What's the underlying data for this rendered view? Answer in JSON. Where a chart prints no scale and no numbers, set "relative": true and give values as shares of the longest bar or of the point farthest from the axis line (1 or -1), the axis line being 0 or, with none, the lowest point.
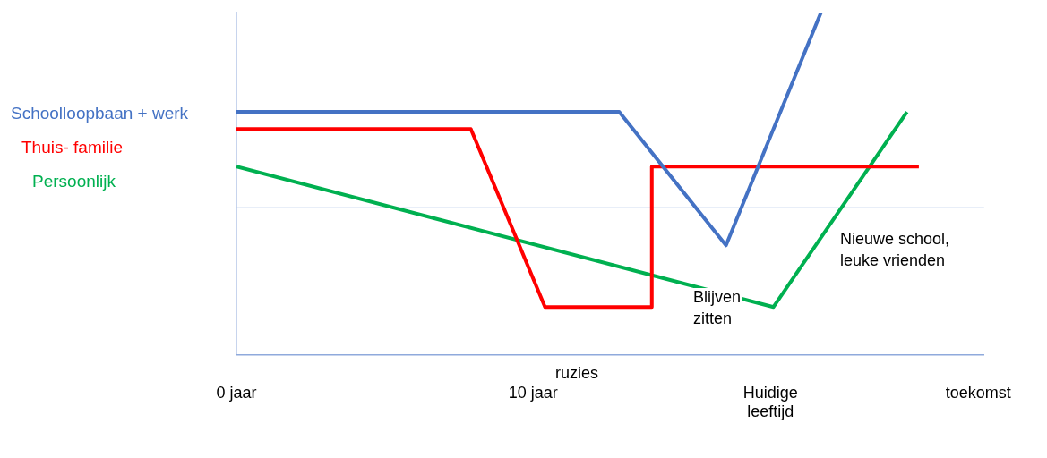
{
  "chart_data": {
    "type": "line",
    "relative": true,
    "legend": "left",
    "grid": false,
    "marker": "none",
    "line_style": "solid",
    "tick_labels": "x",
    "xlim": [
      0,
      25.2
    ],
    "xticks": [
      {
        "value": 0,
        "label": "0 jaar"
      },
      {
        "value": 10,
        "label": "10 jaar"
      },
      {
        "value": 18,
        "label": "Huidige leeftijd"
      },
      {
        "value": 25,
        "label": "toekomst"
      }
    ],
    "series": [
      {
        "name": "Schoolloopbaan + werk",
        "color": "#4472c4",
        "x": [
          0,
          12.9,
          16.5,
          19.7
        ],
        "values": [
          0.71,
          0.71,
          0.32,
          1
        ]
      },
      {
        "name": "Thuis- familie",
        "color": "#ff0000",
        "x": [
          0,
          7.9,
          10.4,
          14,
          14,
          23
        ],
        "values": [
          0.66,
          0.66,
          0.14,
          0.14,
          0.55,
          0.55
        ]
      },
      {
        "name": "Persoonlijk",
        "color": "#00b050",
        "x": [
          0,
          18.1,
          22.6
        ],
        "values": [
          0.55,
          0.14,
          0.71
        ]
      }
    ],
    "ref_lines": [
      {
        "axis": "y",
        "value": 0.43,
        "color": "#b4c7e7"
      }
    ],
    "annotations": [
      "Blijven zitten",
      "Nieuwe school, leuke vrienden",
      "ruzies"
    ]
  }
}
